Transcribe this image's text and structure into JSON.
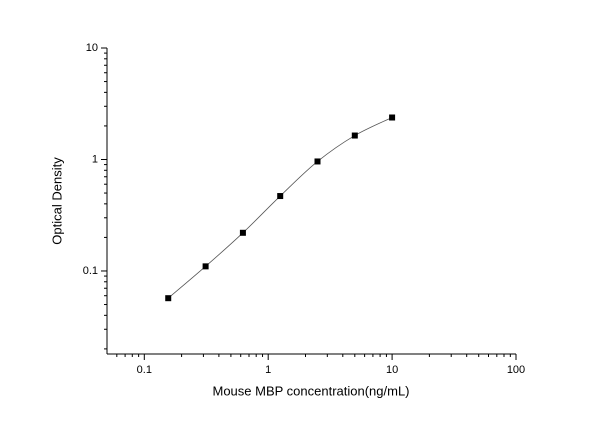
{
  "chart_data": {
    "type": "scatter",
    "xlabel": "Mouse MBP concentration(ng/mL)",
    "ylabel": "Optical Density",
    "xscale": "log",
    "yscale": "log",
    "xlim": [
      0.05,
      100
    ],
    "ylim": [
      0.018,
      10
    ],
    "xticks": [
      0.1,
      1,
      10,
      100
    ],
    "yticks": [
      0.1,
      1,
      10
    ],
    "minor_ticks": true,
    "fit_curve": true,
    "grid": false,
    "series": [
      {
        "color": "#000000",
        "x": [
          0.156,
          0.3125,
          0.625,
          1.25,
          2.5,
          5,
          10
        ],
        "values": [
          0.057,
          0.11,
          0.22,
          0.47,
          0.96,
          1.64,
          2.38
        ]
      }
    ]
  }
}
